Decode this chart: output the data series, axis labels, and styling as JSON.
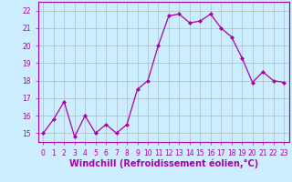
{
  "x": [
    0,
    1,
    2,
    3,
    4,
    5,
    6,
    7,
    8,
    9,
    10,
    11,
    12,
    13,
    14,
    15,
    16,
    17,
    18,
    19,
    20,
    21,
    22,
    23
  ],
  "y": [
    15.0,
    15.8,
    16.8,
    14.8,
    16.0,
    15.0,
    15.5,
    15.0,
    15.5,
    17.5,
    18.0,
    20.0,
    21.7,
    21.8,
    21.3,
    21.4,
    21.8,
    21.0,
    20.5,
    19.3,
    17.9,
    18.5,
    18.0,
    17.9
  ],
  "xlabel": "Windchill (Refroidissement éolien,°C)",
  "ylim": [
    14.5,
    22.5
  ],
  "xlim": [
    -0.5,
    23.5
  ],
  "yticks": [
    15,
    16,
    17,
    18,
    19,
    20,
    21,
    22
  ],
  "xticks": [
    0,
    1,
    2,
    3,
    4,
    5,
    6,
    7,
    8,
    9,
    10,
    11,
    12,
    13,
    14,
    15,
    16,
    17,
    18,
    19,
    20,
    21,
    22,
    23
  ],
  "line_color": "#aa00aa",
  "marker_color": "#aa00aa",
  "bg_color": "#cceeff",
  "grid_color": "#aabbcc",
  "xlabel_color": "#aa00aa",
  "tick_color": "#aa00aa",
  "spine_color": "#aa00aa",
  "tick_fontsize": 5.5,
  "xlabel_fontsize": 7.0
}
